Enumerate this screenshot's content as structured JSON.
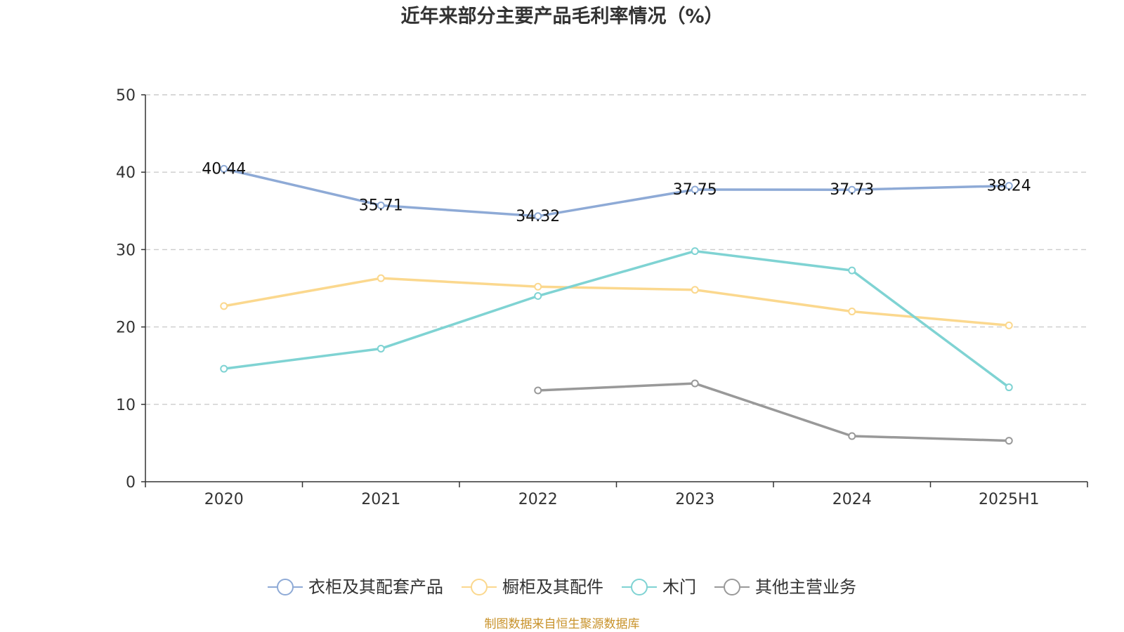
{
  "chart_data": {
    "type": "line",
    "title": "近年来部分主要产品毛利率情况（%）",
    "categories": [
      "2020",
      "2021",
      "2022",
      "2023",
      "2024",
      "2025H1"
    ],
    "ylim": [
      0,
      50
    ],
    "yticks": [
      0,
      10,
      20,
      30,
      40,
      50
    ],
    "grid": true,
    "legend_position": "bottom",
    "series": [
      {
        "name": "衣柜及其配套产品",
        "color": "#8eaad6",
        "values": [
          40.44,
          35.71,
          34.32,
          37.75,
          37.73,
          38.24
        ],
        "show_labels": true
      },
      {
        "name": "橱柜及其配件",
        "color": "#fbd88e",
        "values": [
          22.7,
          26.3,
          25.2,
          24.8,
          22.0,
          20.2
        ],
        "show_labels": false
      },
      {
        "name": "木门",
        "color": "#7fd3d3",
        "values": [
          14.6,
          17.2,
          24.0,
          29.8,
          27.3,
          12.2
        ],
        "show_labels": false
      },
      {
        "name": "其他主营业务",
        "color": "#999999",
        "values": [
          null,
          null,
          11.8,
          12.7,
          5.9,
          5.3
        ],
        "show_labels": false
      }
    ]
  },
  "source_note": "制图数据来自恒生聚源数据库"
}
